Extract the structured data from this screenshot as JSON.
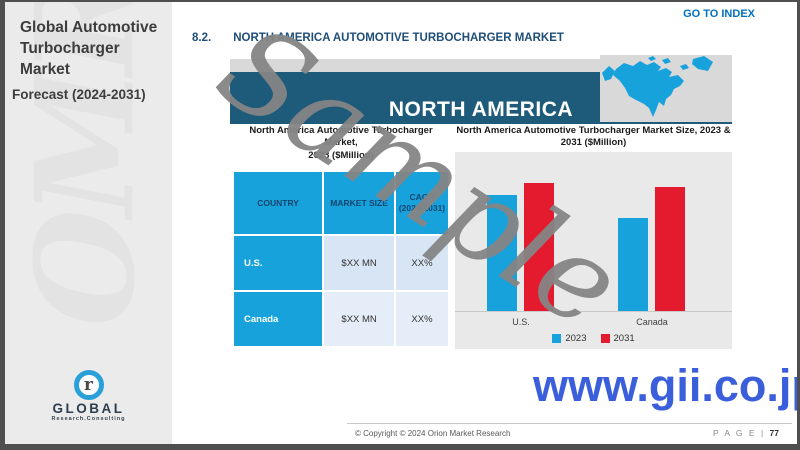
{
  "sidebar": {
    "title_line1": "Global Automotive",
    "title_line2": "Turbocharger Market",
    "subtitle": "Forecast (2024-2031)",
    "watermark_text": "OMR",
    "logo": {
      "monogram": "r",
      "brand": "GLOBAL",
      "tagline": "Research.Consulting"
    }
  },
  "header": {
    "go_to_index": "GO TO INDEX",
    "section_number": "8.2.",
    "section_title": "NORTH AMERICA AUTOMOTIVE TURBOCHARGER MARKET"
  },
  "figure": {
    "banner_title": "NORTH AMERICA",
    "banner_color": "#1e5b7a",
    "map_icon": "north-america-map",
    "table_panel": {
      "title_line1": "North America Automotive Turbocharger Market,",
      "title_line2": "2023 ($Million)",
      "columns": [
        "COUNTRY",
        "MARKET SIZE",
        "CAGR (2024-2031)"
      ],
      "rows": [
        {
          "country": "U.S.",
          "market_size": "$XX MN",
          "cagr": "XX%"
        },
        {
          "country": "Canada",
          "market_size": "$XX MN",
          "cagr": "XX%"
        }
      ]
    },
    "chart_panel": {
      "title_line1": "North America Automotive Turbocharger Market Size, 2023 &",
      "title_line2": "2031 ($Million)"
    }
  },
  "chart_data": {
    "type": "bar",
    "title": "North America Automotive Turbocharger Market Size, 2023 & 2031 ($Million)",
    "categories": [
      "U.S.",
      "Canada"
    ],
    "series": [
      {
        "name": "2023",
        "color": "#18a2dc",
        "values_relative": [
          91,
          73
        ]
      },
      {
        "name": "2031",
        "color": "#e41b2e",
        "values_relative": [
          100,
          97
        ]
      }
    ],
    "xlabel": "",
    "ylabel": "",
    "y_axis_visible": false,
    "data_labels_visible": false,
    "grid": false,
    "legend_position": "bottom",
    "plot_background": "#e9e9e9"
  },
  "watermarks": {
    "sample": "Sample",
    "gii_url": "www.gii.co.jp"
  },
  "footer": {
    "copyright": "© Copyright © 2024 Orion Market Research",
    "page_label": "P A G E",
    "page_separator": "|",
    "page_number": "77"
  },
  "colors": {
    "accent_blue": "#18a2dc",
    "accent_red": "#e41b2e",
    "banner_teal": "#1e5b7a",
    "section_navy": "#1f4e79",
    "goto_blue": "#0070c0",
    "gii_blue": "#3b5edb"
  }
}
